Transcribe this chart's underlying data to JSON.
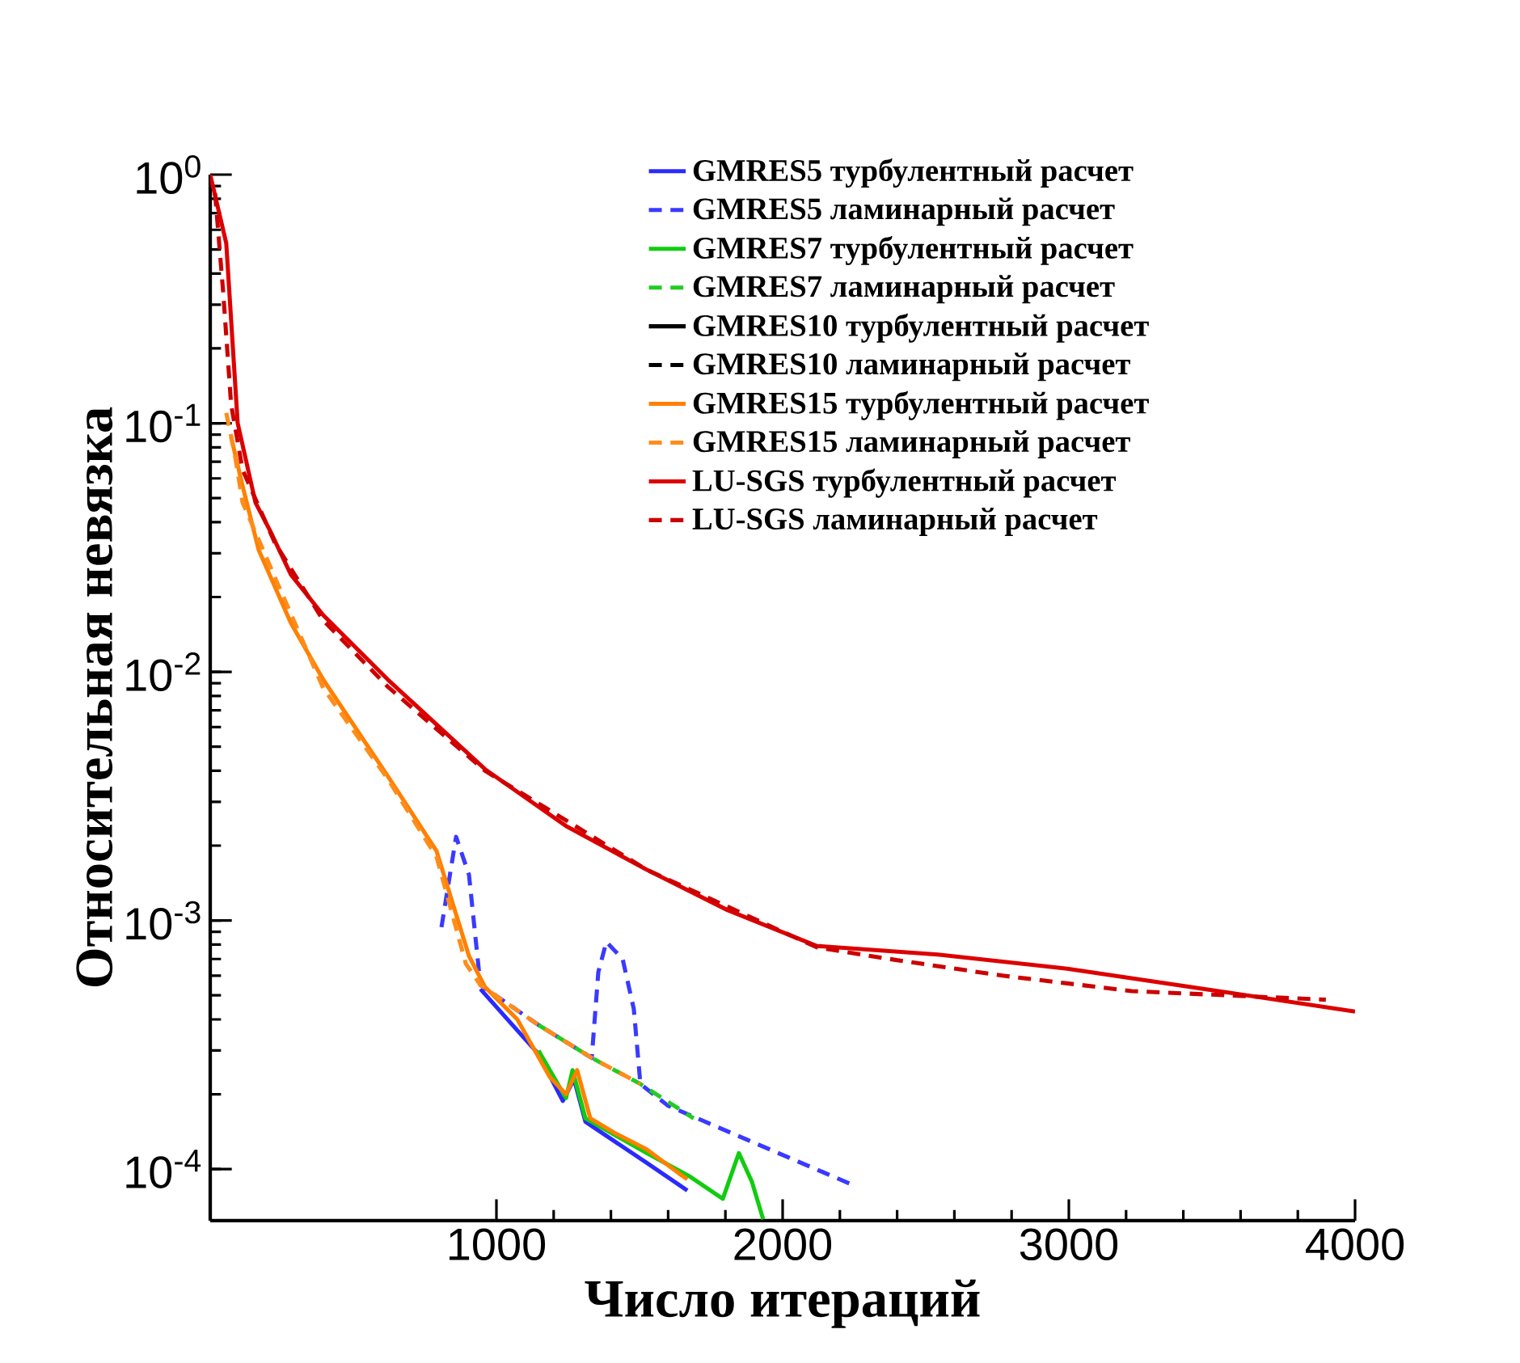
{
  "chart_data": {
    "type": "line",
    "xlabel": "Число итераций",
    "ylabel": "Относительная невязка",
    "log": "y",
    "xlim": [
      0,
      4000
    ],
    "ylim": [
      6.2e-05,
      1
    ],
    "xticks": [
      1000,
      2000,
      3000,
      4000
    ],
    "yticks": [
      {
        "value": 0.0001,
        "label": "10$^{-4}$"
      },
      {
        "value": 0.001,
        "label": "10$^{-3}$"
      },
      {
        "value": 0.01,
        "label": "10$^{-2}$"
      },
      {
        "value": 0.1,
        "label": "10$^{-1}$"
      },
      {
        "value": 1,
        "label": "10$^{0}$"
      }
    ],
    "legend": "top right",
    "series": [
      {
        "name": "GMRES5 турбулентный расчет",
        "color": "#2a2aff",
        "line_style": "solid",
        "x": [
          944,
          1147,
          1232,
          1271,
          1311,
          1525,
          1667
        ],
        "values": [
          0.00053,
          0.00029,
          0.000188,
          0.00023,
          0.000155,
          0.000106,
          8.2e-05
        ]
      },
      {
        "name": "GMRES5 ламинарный расчет",
        "color": "#3a3aff",
        "line_style": "dashed",
        "x": [
          808,
          859,
          904,
          944,
          1147,
          1333,
          1356,
          1384,
          1441,
          1480,
          1503,
          1599,
          1825,
          2249
        ],
        "values": [
          0.00094,
          0.00217,
          0.00153,
          0.00055,
          0.00038,
          0.00028,
          0.00062,
          0.00082,
          0.0007,
          0.00044,
          0.00022,
          0.00018,
          0.000139,
          8.6e-05
        ]
      },
      {
        "name": "GMRES7 турбулентный расчет",
        "color": "#11cc11",
        "line_style": "solid",
        "x": [
          1147,
          1243,
          1266,
          1311,
          1525,
          1678,
          1791,
          1847,
          1893,
          1932
        ],
        "values": [
          0.0003,
          0.000193,
          0.00025,
          0.00016,
          0.000116,
          9.3e-05,
          7.6e-05,
          0.000116,
          8.87e-05,
          6.28e-05
        ]
      },
      {
        "name": "GMRES7 ламинарный расчет",
        "color": "#22cc22",
        "line_style": "dashed",
        "x": [
          1147,
          1333,
          1503,
          1689
        ],
        "values": [
          0.00038,
          0.00028,
          0.00022,
          0.00016
        ]
      },
      {
        "name": "GMRES10 турбулентный расчет",
        "color": "#000000",
        "line_style": "solid"
      },
      {
        "name": "GMRES10 ламинарный расчет",
        "color": "#000000",
        "line_style": "dashed"
      },
      {
        "name": "GMRES15 турбулентный расчет",
        "color": "#ff8000",
        "line_style": "solid",
        "x": [
          73,
          113,
          169,
          282,
          395,
          621,
          791,
          904,
          960,
          1073,
          1186,
          1243,
          1282,
          1328,
          1412,
          1525,
          1638,
          1667
        ],
        "values": [
          0.088,
          0.056,
          0.031,
          0.0157,
          0.0093,
          0.0038,
          0.0019,
          0.00072,
          0.00054,
          0.0004,
          0.000235,
          0.0002,
          0.00025,
          0.00016,
          0.00014,
          0.00012,
          9.6e-05,
          9.1e-05
        ]
      },
      {
        "name": "GMRES15 ламинарный расчет",
        "color": "#ff8c1a",
        "line_style": "dashed",
        "x": [
          56,
          85,
          113,
          226,
          395,
          621,
          791,
          893,
          944,
          1147,
          1333,
          1503
        ],
        "values": [
          0.11,
          0.076,
          0.048,
          0.024,
          0.0086,
          0.0037,
          0.0018,
          0.00067,
          0.00055,
          0.00038,
          0.00028,
          0.00022
        ]
      },
      {
        "name": "LU-SGS турбулентный расчет",
        "color": "#dd0000",
        "line_style": "solid",
        "x": [
          0,
          56,
          96,
          158,
          209,
          282,
          395,
          621,
          960,
          1243,
          1525,
          1808,
          2119,
          2542,
          2994,
          3475,
          4000
        ],
        "values": [
          1,
          0.53,
          0.1,
          0.048,
          0.037,
          0.0246,
          0.0169,
          0.0093,
          0.00406,
          0.0024,
          0.0016,
          0.0011,
          0.00079,
          0.00073,
          0.00064,
          0.00053,
          0.00043
        ]
      },
      {
        "name": "LU-SGS ламинарный расчет",
        "color": "#cc0000",
        "line_style": "dashed",
        "x": [
          17,
          45,
          73,
          113,
          226,
          395,
          621,
          960,
          1525,
          2119,
          2373,
          2768,
          3220,
          3898
        ],
        "values": [
          0.84,
          0.34,
          0.119,
          0.065,
          0.033,
          0.0161,
          0.0087,
          0.004,
          0.0016,
          0.00078,
          0.0007,
          0.0006,
          0.00052,
          0.00048
        ]
      }
    ]
  }
}
